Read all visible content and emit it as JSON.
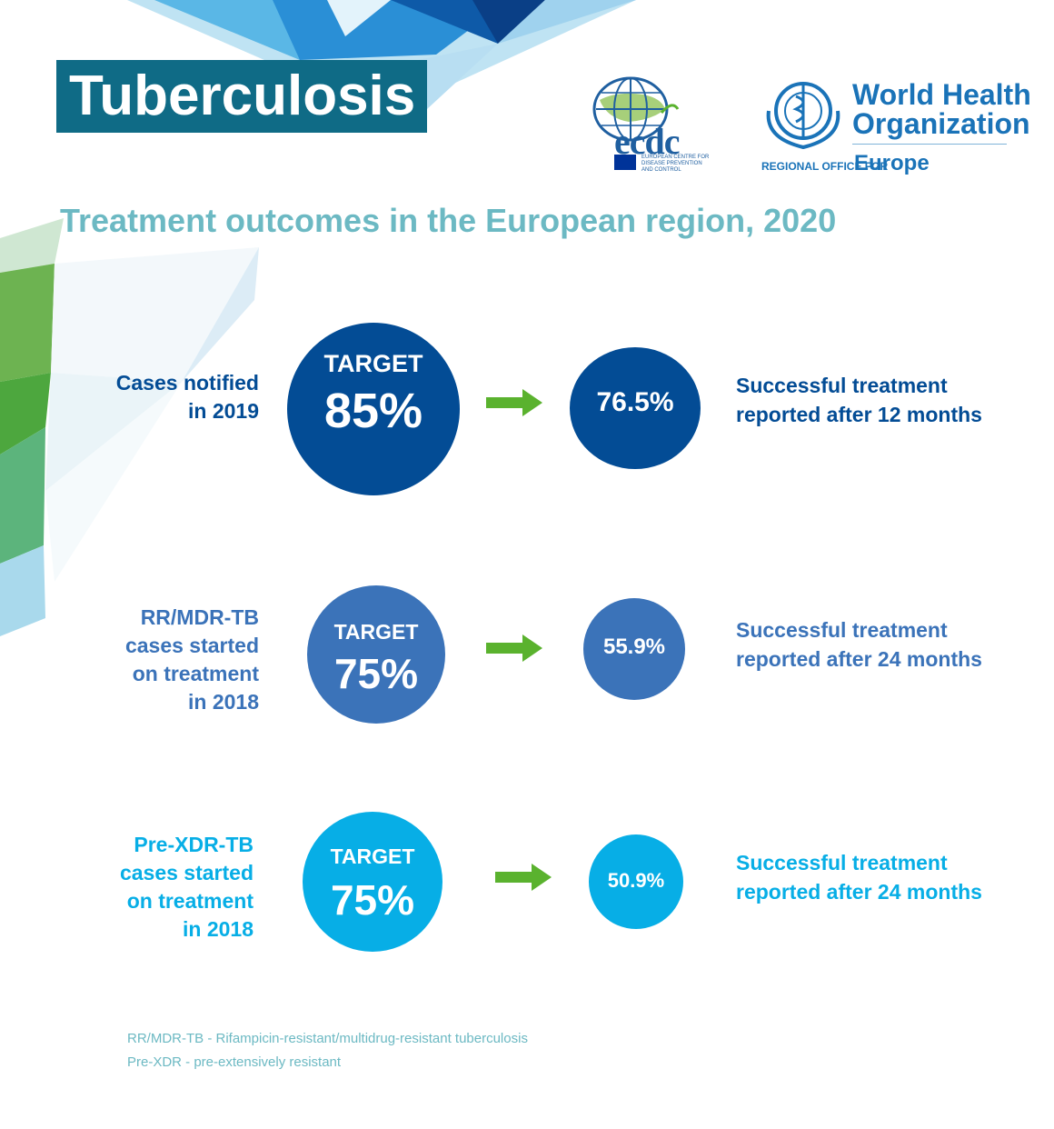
{
  "header": {
    "title": "Tuberculosis",
    "ecdc_logo_text": "ecdc",
    "ecdc_subtext": "EUROPEAN CENTRE FOR DISEASE PREVENTION AND CONTROL",
    "who_name_line1": "World Health",
    "who_name_line2": "Organization",
    "who_region_label": "REGIONAL OFFICE FOR",
    "who_region_name": "Europe"
  },
  "subtitle": "Treatment outcomes in the European region, 2020",
  "rows": [
    {
      "left_label_lines": [
        "Cases notified",
        "in 2019"
      ],
      "target_label": "TARGET",
      "target_value": "85%",
      "result_value": "76.5%",
      "right_label_lines": [
        "Successful treatment",
        "reported after 12 months"
      ],
      "color": "#034c95"
    },
    {
      "left_label_lines": [
        "RR/MDR-TB",
        "cases started",
        "on treatment",
        "in 2018"
      ],
      "target_label": "TARGET",
      "target_value": "75%",
      "result_value": "55.9%",
      "right_label_lines": [
        "Successful treatment",
        "reported after 24 months"
      ],
      "color": "#3b73b9"
    },
    {
      "left_label_lines": [
        "Pre-XDR-TB",
        "cases started",
        "on treatment",
        "in 2018"
      ],
      "target_label": "TARGET",
      "target_value": "75%",
      "result_value": "50.9%",
      "right_label_lines": [
        "Successful treatment",
        "reported after 24 months"
      ],
      "color": "#07aee6"
    }
  ],
  "arrow_color": "#5ab22e",
  "footnotes": [
    "RR/MDR-TB - Rifampicin-resistant/multidrug-resistant tuberculosis",
    "Pre-XDR - pre-extensively resistant"
  ]
}
